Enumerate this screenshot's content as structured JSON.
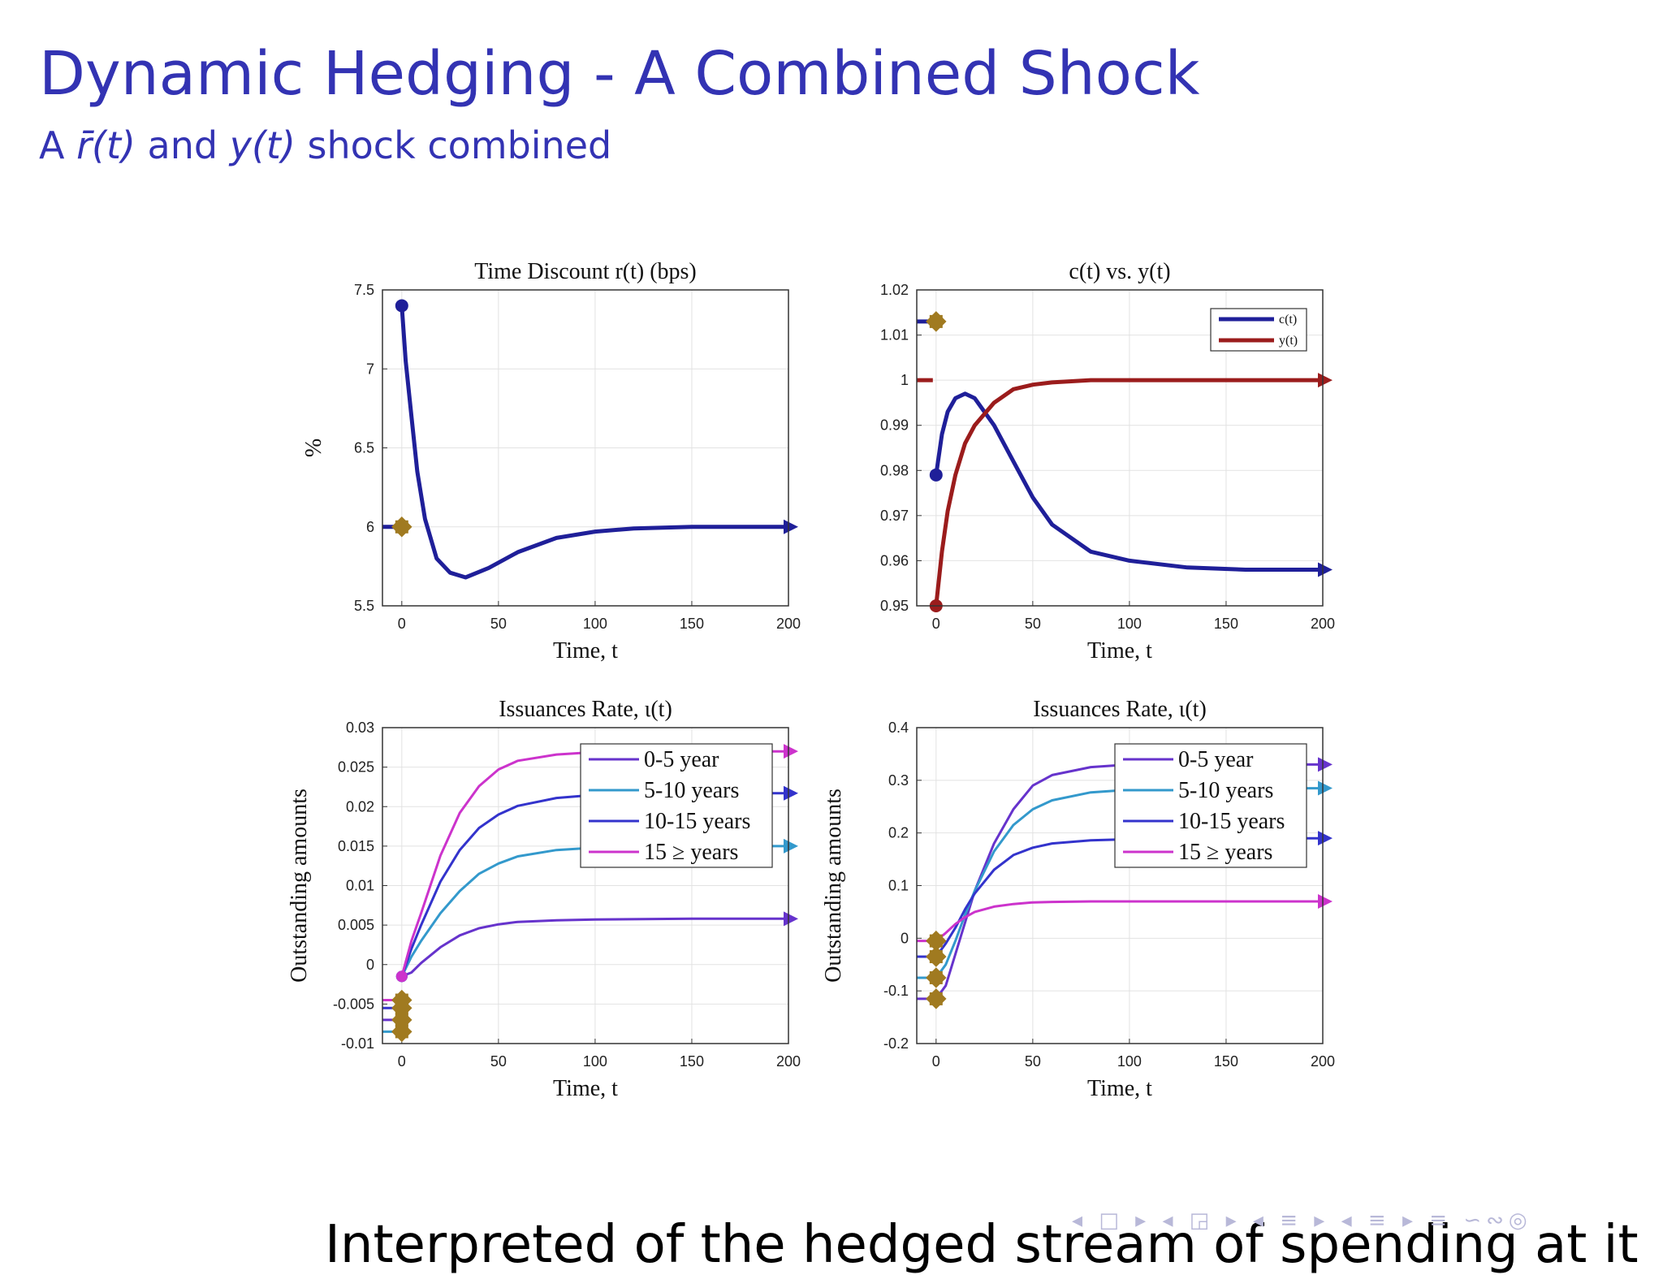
{
  "slide": {
    "title": "Dynamic Hedging - A Combined Shock",
    "subtitle": {
      "prefix": "A ",
      "rbar": "r̄(t)",
      "and": " and ",
      "y": "y(t)",
      "suffix": " shock combined"
    },
    "bottom_text": "Interpreted of the hedged stream of spending at it",
    "nav_symbols": "◂ □ ▸ ◂ ◲ ▸ ◂ ≡ ▸ ◂ ≡ ▸ ≡ ∽∾◎"
  },
  "colors": {
    "title": "#3333b3",
    "navy": "#1f1f99",
    "darkred": "#9b1c1c",
    "purple": "#6633cc",
    "cyan": "#3399cc",
    "blue": "#3333cc",
    "magenta": "#cc33cc",
    "marker_olive": "#a07a20"
  },
  "chart_data": [
    {
      "type": "line",
      "title": "Time Discount r(t) (bps)",
      "xlabel": "Time, t",
      "ylabel": "%",
      "xlim": [
        -10,
        200
      ],
      "ylim": [
        5.5,
        7.5
      ],
      "xticks": [
        0,
        50,
        100,
        150,
        200
      ],
      "yticks": [
        5.5,
        6,
        6.5,
        7,
        7.5
      ],
      "ytick_labels": [
        "5.5",
        "6",
        "6.5",
        "7",
        "7.5"
      ],
      "grid": true,
      "legend": [],
      "series": [
        {
          "color": "navy",
          "x": [
            0,
            2,
            5,
            8,
            12,
            18,
            25,
            33,
            45,
            60,
            80,
            100,
            120,
            150,
            200
          ],
          "y": [
            7.4,
            7.05,
            6.7,
            6.35,
            6.05,
            5.8,
            5.71,
            5.68,
            5.74,
            5.84,
            5.93,
            5.97,
            5.99,
            6.0,
            6.0
          ],
          "pre_level": 6.0,
          "start_marker": 7.4,
          "cross_marker": 6.0
        }
      ]
    },
    {
      "type": "line",
      "title": "c(t) vs. y(t)",
      "xlabel": "Time, t",
      "ylabel": "",
      "xlim": [
        -10,
        200
      ],
      "ylim": [
        0.95,
        1.02
      ],
      "xticks": [
        0,
        50,
        100,
        150,
        200
      ],
      "yticks": [
        0.95,
        0.96,
        0.97,
        0.98,
        0.99,
        1,
        1.01,
        1.02
      ],
      "ytick_labels": [
        "0.95",
        "0.96",
        "0.97",
        "0.98",
        "0.99",
        "1",
        "1.01",
        "1.02"
      ],
      "grid": true,
      "legend_position": "top-right",
      "legend": [
        "c(t)",
        "y(t)"
      ],
      "series": [
        {
          "name": "c(t)",
          "color": "navy",
          "x": [
            0,
            3,
            6,
            10,
            15,
            20,
            30,
            40,
            50,
            60,
            80,
            100,
            130,
            160,
            200
          ],
          "y": [
            0.979,
            0.988,
            0.993,
            0.996,
            0.997,
            0.996,
            0.99,
            0.982,
            0.974,
            0.968,
            0.962,
            0.96,
            0.9585,
            0.958,
            0.958
          ],
          "pre_level": 1.013,
          "start_marker": 0.979,
          "cross_marker": 1.013
        },
        {
          "name": "y(t)",
          "color": "darkred",
          "x": [
            0,
            3,
            6,
            10,
            15,
            20,
            30,
            40,
            50,
            60,
            80,
            100,
            150,
            200
          ],
          "y": [
            0.95,
            0.962,
            0.971,
            0.979,
            0.986,
            0.99,
            0.995,
            0.998,
            0.999,
            0.9995,
            1.0,
            1.0,
            1.0,
            1.0
          ],
          "pre_level": 1.0,
          "start_marker": 0.95
        }
      ]
    },
    {
      "type": "line",
      "title": "Issuances Rate, ι(t)",
      "xlabel": "Time, t",
      "ylabel": "Outstanding amounts",
      "xlim": [
        -10,
        200
      ],
      "ylim": [
        -0.01,
        0.03
      ],
      "xticks": [
        0,
        50,
        100,
        150,
        200
      ],
      "yticks": [
        -0.01,
        -0.005,
        0,
        0.005,
        0.01,
        0.015,
        0.02,
        0.025,
        0.03
      ],
      "ytick_labels": [
        "-0.01",
        "-0.005",
        "0",
        "0.005",
        "0.01",
        "0.015",
        "0.02",
        "0.025",
        "0.03"
      ],
      "grid": true,
      "legend_position": "top-right",
      "legend": [
        "0-5 year",
        "5-10 years",
        "10-15 years",
        "15 ≥ years"
      ],
      "series": [
        {
          "name": "0-5 year",
          "color": "purple",
          "x": [
            0,
            5,
            10,
            20,
            30,
            40,
            50,
            60,
            80,
            100,
            150,
            200
          ],
          "y": [
            -0.0015,
            -0.001,
            0.0002,
            0.0022,
            0.0037,
            0.0046,
            0.0051,
            0.0054,
            0.0056,
            0.0057,
            0.0058,
            0.0058
          ],
          "pre_level": -0.007
        },
        {
          "name": "5-10 years",
          "color": "cyan",
          "x": [
            0,
            5,
            10,
            20,
            30,
            40,
            50,
            60,
            80,
            100,
            150,
            200
          ],
          "y": [
            -0.0015,
            0.001,
            0.003,
            0.0065,
            0.0093,
            0.0115,
            0.0128,
            0.0137,
            0.0145,
            0.0148,
            0.015,
            0.015
          ],
          "pre_level": -0.0085
        },
        {
          "name": "10-15 years",
          "color": "blue",
          "x": [
            0,
            5,
            10,
            20,
            30,
            40,
            50,
            60,
            80,
            100,
            150,
            200
          ],
          "y": [
            -0.0015,
            0.002,
            0.005,
            0.0105,
            0.0145,
            0.0173,
            0.019,
            0.0201,
            0.0211,
            0.0215,
            0.0217,
            0.0217
          ],
          "pre_level": -0.0055
        },
        {
          "name": "15 ≥ years",
          "color": "magenta",
          "x": [
            0,
            5,
            10,
            20,
            30,
            40,
            50,
            60,
            80,
            100,
            150,
            200
          ],
          "y": [
            -0.0015,
            0.003,
            0.0065,
            0.0138,
            0.0192,
            0.0226,
            0.0247,
            0.0258,
            0.0266,
            0.0269,
            0.027,
            0.027
          ],
          "pre_level": -0.0045
        }
      ]
    },
    {
      "type": "line",
      "title": "Issuances Rate, ι(t)",
      "xlabel": "Time, t",
      "ylabel": "Outstanding amounts",
      "xlim": [
        -10,
        200
      ],
      "ylim": [
        -0.2,
        0.4
      ],
      "xticks": [
        0,
        50,
        100,
        150,
        200
      ],
      "yticks": [
        -0.2,
        -0.1,
        0,
        0.1,
        0.2,
        0.3,
        0.4
      ],
      "ytick_labels": [
        "-0.2",
        "-0.1",
        "0",
        "0.1",
        "0.2",
        "0.3",
        "0.4"
      ],
      "grid": true,
      "legend_position": "top-right",
      "legend": [
        "0-5 year",
        "5-10 years",
        "10-15 years",
        "15 ≥ years"
      ],
      "series": [
        {
          "name": "0-5 year",
          "color": "purple",
          "x": [
            0,
            5,
            10,
            15,
            20,
            30,
            40,
            50,
            60,
            80,
            100,
            150,
            200
          ],
          "y": [
            -0.115,
            -0.09,
            -0.03,
            0.03,
            0.09,
            0.18,
            0.245,
            0.29,
            0.31,
            0.325,
            0.33,
            0.33,
            0.33
          ],
          "pre_level": -0.115
        },
        {
          "name": "5-10 years",
          "color": "cyan",
          "x": [
            0,
            5,
            10,
            15,
            20,
            30,
            40,
            50,
            60,
            80,
            100,
            150,
            200
          ],
          "y": [
            -0.075,
            -0.05,
            -0.005,
            0.045,
            0.09,
            0.165,
            0.215,
            0.245,
            0.262,
            0.277,
            0.282,
            0.285,
            0.285
          ],
          "pre_level": -0.075
        },
        {
          "name": "10-15 years",
          "color": "blue",
          "x": [
            0,
            5,
            10,
            15,
            20,
            30,
            40,
            50,
            60,
            80,
            100,
            150,
            200
          ],
          "y": [
            -0.035,
            -0.01,
            0.02,
            0.055,
            0.085,
            0.13,
            0.158,
            0.172,
            0.18,
            0.186,
            0.188,
            0.19,
            0.19
          ],
          "pre_level": -0.035
        },
        {
          "name": "15 ≥ years",
          "color": "magenta",
          "x": [
            0,
            5,
            10,
            15,
            20,
            30,
            40,
            50,
            60,
            80,
            100,
            150,
            200
          ],
          "y": [
            -0.005,
            0.01,
            0.027,
            0.04,
            0.05,
            0.06,
            0.065,
            0.068,
            0.069,
            0.07,
            0.07,
            0.07,
            0.07
          ],
          "pre_level": -0.005
        }
      ]
    }
  ]
}
